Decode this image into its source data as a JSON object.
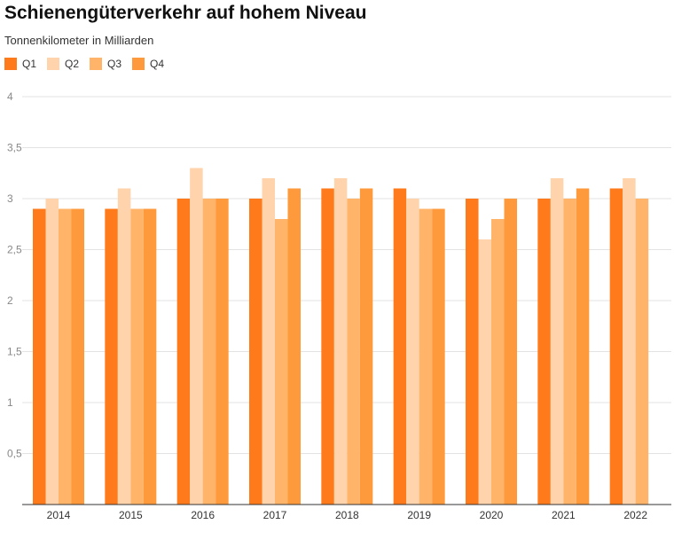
{
  "chart_data": {
    "type": "bar",
    "title": "Schienengüterverkehr auf hohem Niveau",
    "subtitle": "Tonnenkilometer in Milliarden",
    "categories": [
      "2014",
      "2015",
      "2016",
      "2017",
      "2018",
      "2019",
      "2020",
      "2021",
      "2022"
    ],
    "series": [
      {
        "name": "Q1",
        "color": "#ff7a1a",
        "values": [
          2.9,
          2.9,
          3.0,
          3.0,
          3.1,
          3.1,
          3.0,
          3.0,
          3.1
        ]
      },
      {
        "name": "Q2",
        "color": "#ffd3ab",
        "values": [
          3.0,
          3.1,
          3.3,
          3.2,
          3.2,
          3.0,
          2.6,
          3.2,
          3.2
        ]
      },
      {
        "name": "Q3",
        "color": "#ffb46a",
        "values": [
          2.9,
          2.9,
          3.0,
          2.8,
          3.0,
          2.9,
          2.8,
          3.0,
          3.0
        ]
      },
      {
        "name": "Q4",
        "color": "#ff9a3c",
        "values": [
          2.9,
          2.9,
          3.0,
          3.1,
          3.1,
          2.9,
          3.0,
          3.1,
          null
        ]
      }
    ],
    "ylim": [
      0,
      4
    ],
    "yticks": [
      0.5,
      1,
      1.5,
      2,
      2.5,
      3,
      3.5,
      4
    ],
    "ytick_labels": [
      "0,5",
      "1",
      "1,5",
      "2",
      "2,5",
      "3",
      "3,5",
      "4"
    ],
    "grid": true,
    "legend_position": "top-left"
  }
}
